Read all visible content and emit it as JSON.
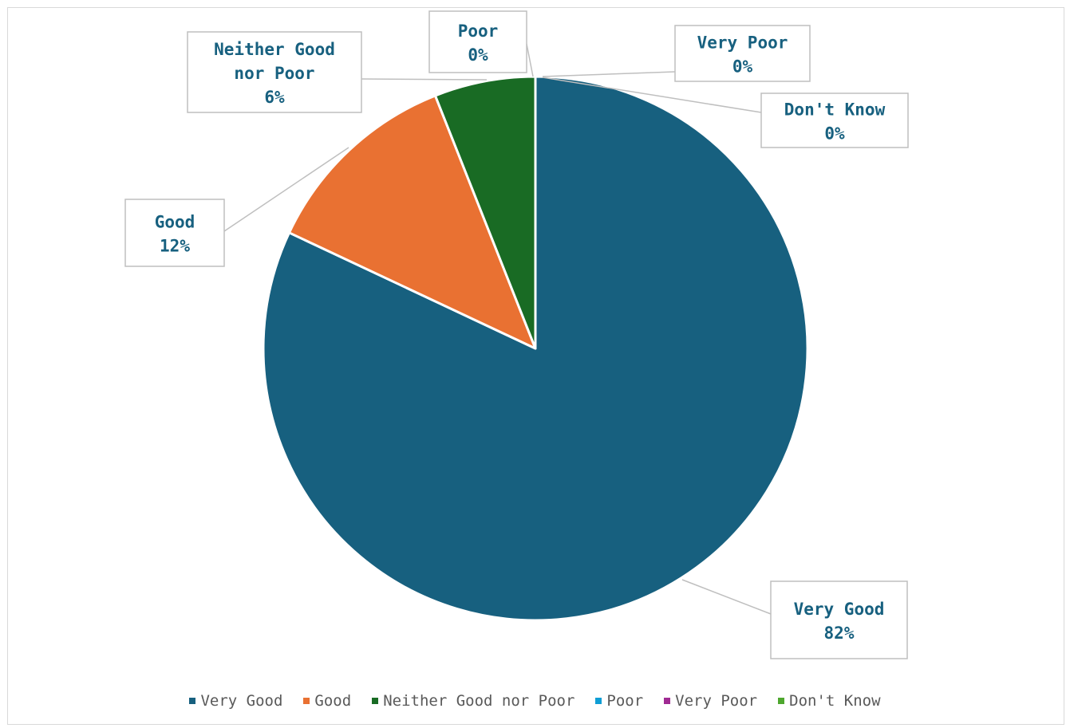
{
  "chart_data": {
    "type": "pie",
    "title": "",
    "categories": [
      "Very Good",
      "Good",
      "Neither Good nor Poor",
      "Poor",
      "Very Poor",
      "Don't Know"
    ],
    "values": [
      82,
      12,
      6,
      0,
      0,
      0
    ],
    "value_labels": [
      "82%",
      "12%",
      "6%",
      "0%",
      "0%",
      "0%"
    ],
    "colors": [
      "#17607f",
      "#e97132",
      "#196b24",
      "#0f9ed5",
      "#a02b93",
      "#4ea72e"
    ],
    "legend_position": "bottom",
    "callouts": [
      {
        "category_lines": [
          "Very Good"
        ],
        "value": "82%"
      },
      {
        "category_lines": [
          "Good"
        ],
        "value": "12%"
      },
      {
        "category_lines": [
          "Neither Good",
          "nor Poor"
        ],
        "value": "6%"
      },
      {
        "category_lines": [
          "Poor"
        ],
        "value": "0%"
      },
      {
        "category_lines": [
          "Very Poor"
        ],
        "value": "0%"
      },
      {
        "category_lines": [
          "Don't Know"
        ],
        "value": "0%"
      }
    ]
  }
}
